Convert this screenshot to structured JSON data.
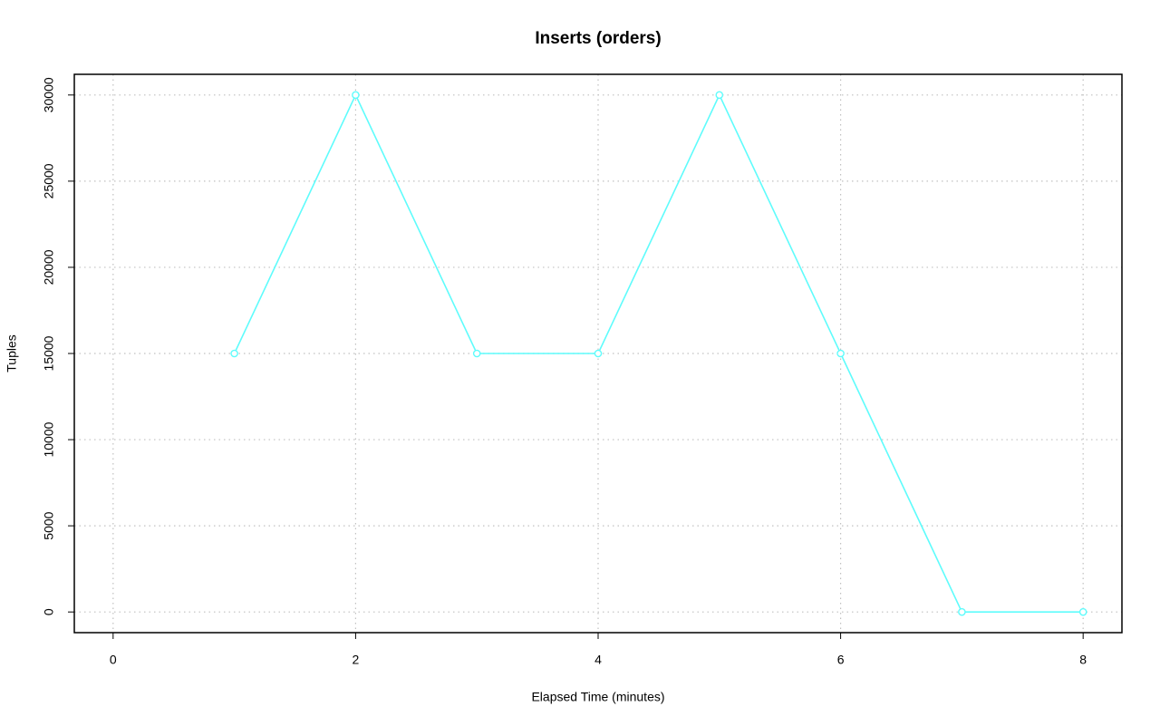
{
  "chart_data": {
    "type": "line",
    "title": "Inserts (orders)",
    "x_label": "Elapsed Time (minutes)",
    "y_label": "Tuples",
    "x": [
      1,
      2,
      3,
      4,
      5,
      6,
      7,
      8
    ],
    "values": [
      15000,
      30000,
      15000,
      15000,
      30000,
      15000,
      0,
      0
    ],
    "color": "#5ffcfc",
    "xlim": [
      -0.32,
      8.32
    ],
    "xticks": [
      0,
      2,
      4,
      6,
      8
    ],
    "ylim": [
      -1200,
      31200
    ],
    "yticks": [
      0,
      5000,
      10000,
      15000,
      20000,
      25000,
      30000
    ],
    "grid": true
  }
}
